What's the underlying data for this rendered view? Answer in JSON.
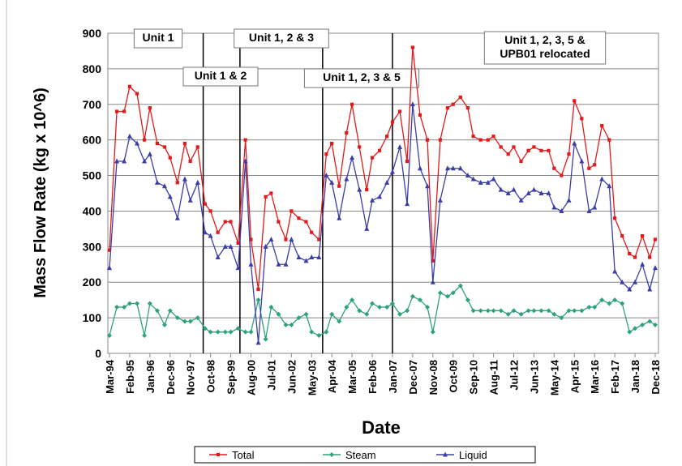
{
  "chart_data": {
    "type": "line",
    "x_label": "Date",
    "y_label": "Mass Flow Rate (kg x 10^6)",
    "ylim": [
      0,
      900
    ],
    "yticks": [
      0,
      100,
      200,
      300,
      400,
      500,
      600,
      700,
      800,
      900
    ],
    "xlim": [
      "Mar-94",
      "Dec-18"
    ],
    "xticks": [
      "Mar-94",
      "Feb-95",
      "Jan-96",
      "Dec-96",
      "Nov-97",
      "Oct-98",
      "Sep-99",
      "Aug-00",
      "Jul-01",
      "Jun-02",
      "May-03",
      "Apr-04",
      "Mar-05",
      "Feb-06",
      "Jan-07",
      "Dec-07",
      "Nov-08",
      "Oct-09",
      "Sep-10",
      "Aug-11",
      "Jul-12",
      "Jun-13",
      "May-14",
      "Apr-15",
      "Mar-16",
      "Feb-17",
      "Jan-18",
      "Dec-18"
    ],
    "grid": true,
    "legend": "bottom",
    "annotations": [
      [
        "Unit 1"
      ],
      [
        "Unit 1 & 2"
      ],
      [
        "Unit 1, 2 & 3"
      ],
      [
        "Unit 1, 2, 3 & 5"
      ],
      [
        "Unit 1, 2, 3, 5 &",
        "UPB01 relocated"
      ]
    ],
    "x": [
      "Mar-94",
      "Jul-94",
      "Nov-94",
      "Feb-95",
      "Jun-95",
      "Oct-95",
      "Jan-96",
      "May-96",
      "Sep-96",
      "Dec-96",
      "Apr-97",
      "Aug-97",
      "Nov-97",
      "Mar-98",
      "Jul-98",
      "Oct-98",
      "Feb-99",
      "Jun-99",
      "Sep-99",
      "Jan-00",
      "May-00",
      "Aug-00",
      "Dec-00",
      "Apr-01",
      "Jul-01",
      "Nov-01",
      "Mar-02",
      "Jun-02",
      "Oct-02",
      "Feb-03",
      "May-03",
      "Sep-03",
      "Jan-04",
      "Apr-04",
      "Aug-04",
      "Dec-04",
      "Mar-05",
      "Jul-05",
      "Nov-05",
      "Feb-06",
      "Jun-06",
      "Oct-06",
      "Jan-07",
      "May-07",
      "Sep-07",
      "Dec-07",
      "Apr-08",
      "Aug-08",
      "Nov-08",
      "Mar-09",
      "Jul-09",
      "Oct-09",
      "Feb-10",
      "Jun-10",
      "Sep-10",
      "Jan-11",
      "May-11",
      "Aug-11",
      "Dec-11",
      "Apr-12",
      "Jul-12",
      "Nov-12",
      "Mar-13",
      "Jun-13",
      "Oct-13",
      "Feb-14",
      "May-14",
      "Sep-14",
      "Jan-15",
      "Apr-15",
      "Aug-15",
      "Dec-15",
      "Mar-16",
      "Jul-16",
      "Nov-16",
      "Feb-17",
      "Jun-17",
      "Oct-17",
      "Jan-18",
      "May-18",
      "Sep-18",
      "Dec-18"
    ],
    "series": [
      {
        "name": "Total",
        "color": "#e31a1c",
        "marker": "square",
        "values": [
          290,
          680,
          680,
          750,
          730,
          600,
          690,
          590,
          580,
          550,
          480,
          590,
          540,
          580,
          420,
          400,
          340,
          370,
          370,
          310,
          600,
          320,
          180,
          440,
          450,
          370,
          320,
          400,
          380,
          370,
          340,
          320,
          560,
          590,
          470,
          620,
          700,
          580,
          460,
          550,
          570,
          610,
          650,
          680,
          540,
          860,
          670,
          600,
          260,
          600,
          690,
          700,
          720,
          690,
          610,
          600,
          600,
          610,
          580,
          560,
          580,
          540,
          570,
          580,
          570,
          570,
          520,
          500,
          560,
          710,
          660,
          520,
          530,
          640,
          600,
          380,
          330,
          280,
          270,
          330,
          270,
          320
        ]
      },
      {
        "name": "Steam",
        "color": "#2ea37a",
        "marker": "diamond",
        "values": [
          50,
          130,
          130,
          140,
          140,
          50,
          140,
          120,
          80,
          120,
          100,
          90,
          90,
          100,
          70,
          60,
          60,
          60,
          60,
          70,
          60,
          60,
          150,
          40,
          130,
          110,
          80,
          80,
          100,
          110,
          60,
          50,
          60,
          110,
          90,
          130,
          150,
          120,
          110,
          140,
          130,
          130,
          140,
          110,
          120,
          160,
          150,
          130,
          60,
          170,
          160,
          170,
          190,
          150,
          120,
          120,
          120,
          120,
          120,
          110,
          120,
          110,
          120,
          120,
          120,
          120,
          110,
          100,
          120,
          120,
          120,
          130,
          130,
          150,
          140,
          150,
          140,
          60,
          70,
          80,
          90,
          80
        ]
      },
      {
        "name": "Liquid",
        "color": "#3b3da8",
        "marker": "triangle",
        "values": [
          240,
          540,
          540,
          610,
          590,
          540,
          560,
          480,
          470,
          440,
          380,
          490,
          430,
          480,
          340,
          330,
          270,
          300,
          300,
          240,
          540,
          250,
          30,
          300,
          320,
          250,
          250,
          320,
          270,
          260,
          270,
          270,
          500,
          480,
          380,
          490,
          550,
          460,
          350,
          430,
          440,
          480,
          510,
          580,
          420,
          700,
          520,
          470,
          200,
          430,
          520,
          520,
          520,
          500,
          490,
          480,
          480,
          490,
          460,
          450,
          460,
          430,
          450,
          460,
          450,
          450,
          410,
          400,
          430,
          590,
          540,
          400,
          410,
          490,
          470,
          230,
          200,
          180,
          200,
          250,
          180,
          240
        ]
      }
    ]
  }
}
